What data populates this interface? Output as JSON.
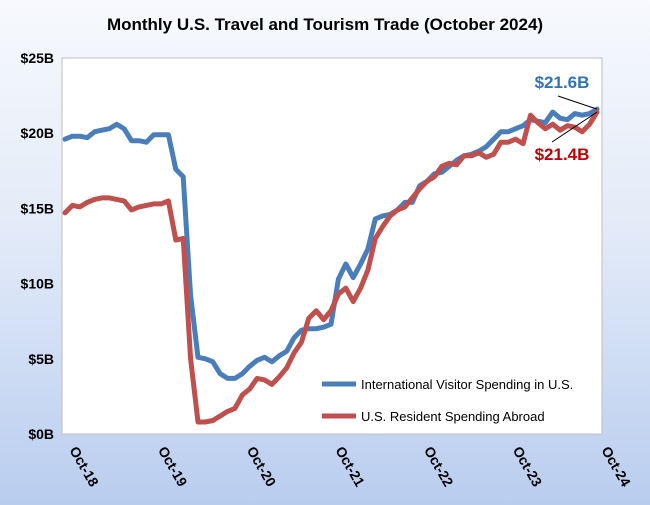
{
  "chart_data": {
    "type": "line",
    "title": "Monthly U.S. Travel and Tourism Trade (October 2024)",
    "xlabel": "",
    "ylabel": "",
    "ylim": [
      0,
      25
    ],
    "y_ticks": [
      {
        "value": 0,
        "label": "$0B"
      },
      {
        "value": 5,
        "label": "$5B"
      },
      {
        "value": 10,
        "label": "$10B"
      },
      {
        "value": 15,
        "label": "$15B"
      },
      {
        "value": 20,
        "label": "$20B"
      },
      {
        "value": 25,
        "label": "$25B"
      }
    ],
    "x_ticks": [
      {
        "index": 0,
        "label": "Oct-18"
      },
      {
        "index": 12,
        "label": "Oct-19"
      },
      {
        "index": 24,
        "label": "Oct-20"
      },
      {
        "index": 36,
        "label": "Oct-21"
      },
      {
        "index": 48,
        "label": "Oct-22"
      },
      {
        "index": 60,
        "label": "Oct-23"
      },
      {
        "index": 72,
        "label": "Oct-24"
      }
    ],
    "grid": false,
    "legend_position": "bottom-right",
    "series": [
      {
        "name": "International Visitor Spending in U.S.",
        "color": "#4a7ebb",
        "values": [
          19.6,
          19.8,
          19.8,
          19.7,
          20.1,
          20.2,
          20.3,
          20.6,
          20.3,
          19.5,
          19.5,
          19.4,
          19.9,
          19.9,
          19.9,
          17.6,
          17.1,
          9.2,
          5.1,
          5.0,
          4.8,
          4.0,
          3.7,
          3.7,
          4.0,
          4.5,
          4.9,
          5.1,
          4.8,
          5.2,
          5.5,
          6.4,
          6.9,
          7.0,
          7.0,
          7.1,
          7.3,
          10.3,
          11.3,
          10.4,
          11.3,
          12.3,
          14.3,
          14.5,
          14.6,
          14.9,
          15.4,
          15.4,
          16.5,
          16.8,
          17.3,
          17.4,
          17.8,
          18.2,
          18.5,
          18.6,
          18.8,
          19.1,
          19.6,
          20.1,
          20.1,
          20.3,
          20.5,
          20.9,
          20.8,
          20.7,
          21.4,
          21.0,
          20.9,
          21.3,
          21.2,
          21.3,
          21.6
        ]
      },
      {
        "name": "U.S. Resident Spending Abroad",
        "color": "#c0504d",
        "values": [
          14.7,
          15.2,
          15.1,
          15.4,
          15.6,
          15.7,
          15.7,
          15.6,
          15.5,
          14.9,
          15.1,
          15.2,
          15.3,
          15.3,
          15.5,
          12.9,
          13.0,
          5.0,
          0.8,
          0.8,
          0.9,
          1.2,
          1.5,
          1.7,
          2.6,
          3.0,
          3.7,
          3.6,
          3.3,
          3.8,
          4.4,
          5.4,
          6.1,
          7.7,
          8.2,
          7.6,
          8.2,
          9.3,
          9.7,
          8.8,
          9.7,
          10.9,
          13.0,
          13.8,
          14.5,
          14.9,
          15.1,
          15.7,
          16.3,
          16.8,
          17.1,
          17.8,
          18.0,
          17.9,
          18.5,
          18.5,
          18.7,
          18.4,
          18.6,
          19.4,
          19.4,
          19.6,
          19.3,
          21.2,
          20.7,
          20.3,
          20.6,
          20.2,
          20.5,
          20.4,
          20.1,
          20.6,
          21.4
        ]
      }
    ],
    "annotations": [
      {
        "series": 0,
        "index": 72,
        "label": "$21.6B",
        "color": "#2e75b6"
      },
      {
        "series": 1,
        "index": 72,
        "label": "$21.4B",
        "color": "#c00000"
      }
    ]
  }
}
